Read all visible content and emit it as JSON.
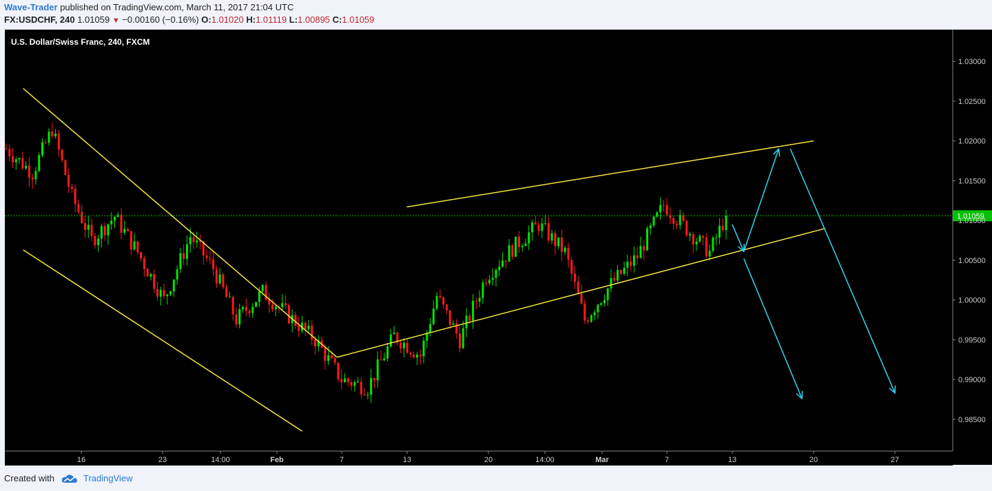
{
  "header": {
    "author": "Wave-Trader",
    "published_text": "published on TradingView.com, March 11, 2017 21:04 UTC",
    "symbol": "FX:USDCHF, 240",
    "last": "1.01059",
    "change": "−0.00160 (−0.16%)",
    "o_label": "O:",
    "o_value": "1.01020",
    "h_label": "H:",
    "h_value": "1.01119",
    "l_label": "L:",
    "l_value": "1.00895",
    "c_label": "C:",
    "c_value": "1.01059"
  },
  "footer": {
    "created_with": "Created with",
    "brand": "TradingView"
  },
  "colors": {
    "up": "#00e600",
    "down": "#ff1a1a",
    "trendline": "#f5e642",
    "arrow": "#33d6f0",
    "last_price_bg": "#00c000",
    "background": "#000000"
  },
  "chart_data": {
    "type": "candlestick",
    "title": "U.S. Dollar/Swiss Franc, 240, FXCM",
    "ylim": [
      0.981,
      1.034
    ],
    "y_ticks": [
      "1.03000",
      "1.02500",
      "1.02000",
      "1.01500",
      "1.01000",
      "1.00500",
      "1.00000",
      "0.99500",
      "0.99000",
      "0.98500"
    ],
    "x_ticks": [
      "16",
      "23",
      "14:00",
      "Feb",
      "7",
      "13",
      "20",
      "14:00",
      "Mar",
      "7",
      "13",
      "20",
      "27"
    ],
    "last_price": "1.01059",
    "candles": {
      "count": 220,
      "anchors": [
        {
          "i": 0,
          "p": 1.019
        },
        {
          "i": 8,
          "p": 1.016
        },
        {
          "i": 14,
          "p": 1.0215
        },
        {
          "i": 20,
          "p": 1.013
        },
        {
          "i": 26,
          "p": 1.0075
        },
        {
          "i": 33,
          "p": 1.0105
        },
        {
          "i": 40,
          "p": 1.006
        },
        {
          "i": 48,
          "p": 1.0
        },
        {
          "i": 56,
          "p": 1.008
        },
        {
          "i": 63,
          "p": 1.004
        },
        {
          "i": 70,
          "p": 0.9975
        },
        {
          "i": 78,
          "p": 1.001
        },
        {
          "i": 86,
          "p": 0.998
        },
        {
          "i": 94,
          "p": 0.995
        },
        {
          "i": 102,
          "p": 0.99
        },
        {
          "i": 110,
          "p": 0.989
        },
        {
          "i": 118,
          "p": 0.9955
        },
        {
          "i": 126,
          "p": 0.993
        },
        {
          "i": 131,
          "p": 1.0005
        },
        {
          "i": 138,
          "p": 0.995
        },
        {
          "i": 146,
          "p": 1.003
        },
        {
          "i": 154,
          "p": 1.0065
        },
        {
          "i": 162,
          "p": 1.0095
        },
        {
          "i": 170,
          "p": 1.006
        },
        {
          "i": 176,
          "p": 0.9975
        },
        {
          "i": 184,
          "p": 1.002
        },
        {
          "i": 192,
          "p": 1.0055
        },
        {
          "i": 200,
          "p": 1.012
        },
        {
          "i": 208,
          "p": 1.0085
        },
        {
          "i": 214,
          "p": 1.006
        },
        {
          "i": 219,
          "p": 1.0106
        }
      ]
    },
    "trendlines": [
      {
        "from": {
          "date": "Jan 11",
          "price": 1.0266
        },
        "to": {
          "date": "Feb 7",
          "price": 0.9928
        }
      },
      {
        "from": {
          "date": "Jan 11",
          "price": 1.0063
        },
        "to": {
          "date": "Feb 4",
          "price": 0.9835
        }
      },
      {
        "from": {
          "date": "Feb 7",
          "price": 0.9928
        },
        "to": {
          "date": "Mar 21",
          "price": 1.009
        }
      },
      {
        "from": {
          "date": "Feb 13",
          "price": 1.0117
        },
        "to": {
          "date": "Mar 20",
          "price": 1.02
        }
      }
    ],
    "arrows": [
      {
        "from": {
          "date": "Mar 13",
          "price": 1.0095
        },
        "to": {
          "date": "Mar 14",
          "price": 1.0061
        }
      },
      {
        "from": {
          "date": "Mar 14",
          "price": 1.0061
        },
        "to": {
          "date": "Mar 17",
          "price": 1.019
        }
      },
      {
        "from": {
          "date": "Mar 14",
          "price": 1.0052
        },
        "to": {
          "date": "Mar 19",
          "price": 0.9876
        }
      },
      {
        "from": {
          "date": "Mar 18",
          "price": 1.019
        },
        "to": {
          "date": "Mar 27",
          "price": 0.9883
        }
      }
    ]
  }
}
